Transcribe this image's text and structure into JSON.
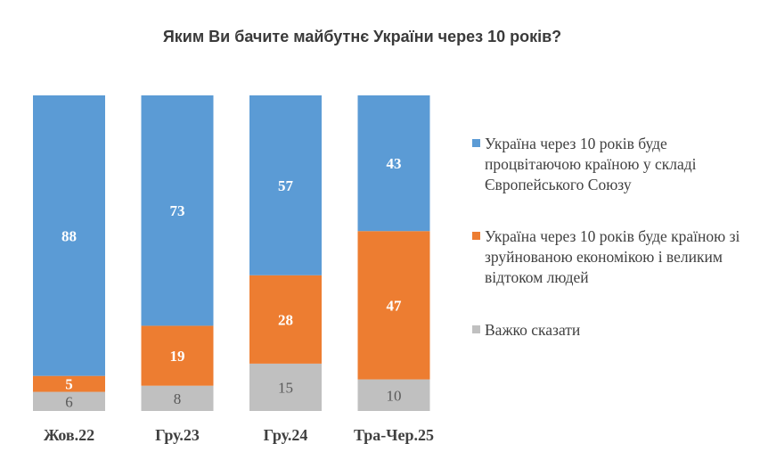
{
  "chart_data": {
    "type": "bar",
    "stacked": true,
    "title": "Яким Ви бачите майбутнє України через 10 років?",
    "categories": [
      "Жов.22",
      "Гру.23",
      "Гру.24",
      "Тра-Чер.25"
    ],
    "ylim": [
      0,
      100
    ],
    "grid": false,
    "legend_position": "right",
    "series": [
      {
        "name": "Україна через 10 років буде процвітаючою країною у складі Європейського Союзу",
        "color": "#5b9bd5",
        "label_color": "#ffffff",
        "values": [
          88,
          73,
          57,
          43
        ]
      },
      {
        "name": "Україна через 10 років буде країною зі зруйнованою економікою і великим відтоком людей",
        "color": "#ed7d31",
        "label_color": "#ffffff",
        "values": [
          5,
          19,
          28,
          47
        ]
      },
      {
        "name": "Важко сказати",
        "color": "#c0c0c0",
        "label_color": "#595959",
        "values": [
          6,
          8,
          15,
          10
        ]
      }
    ]
  }
}
